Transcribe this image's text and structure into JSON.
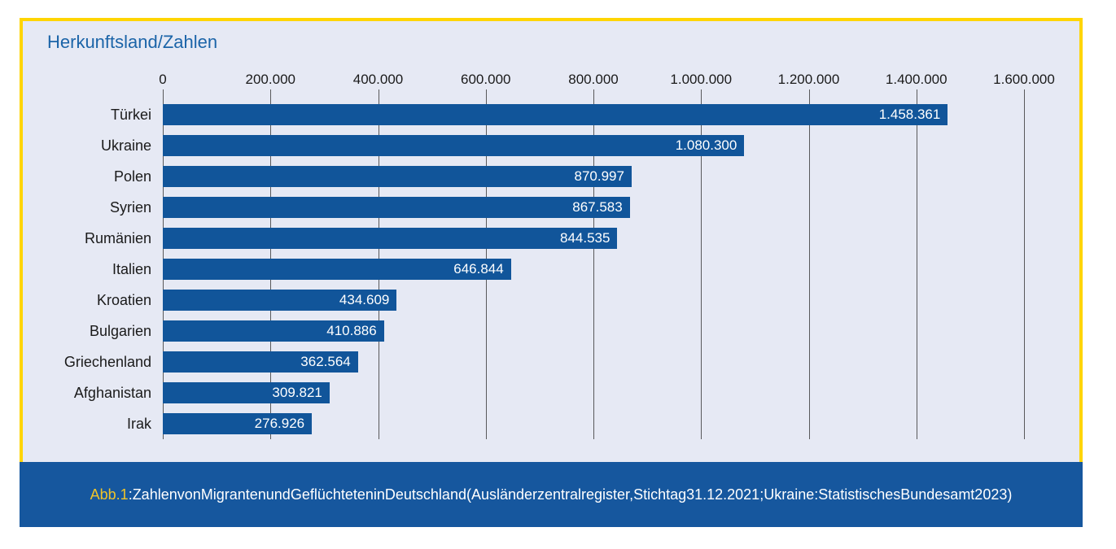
{
  "figure": {
    "title": "Herkunftsland/Zahlen",
    "caption": {
      "prefix": "Abb.1",
      "text": ":ZahlenvonMigrantenundGeflüchteteninDeutschland(Ausländerzentralregister,Stichtag31.12.2021;Ukraine:StatistischesBundesamt2023)"
    }
  },
  "chart_data": {
    "type": "bar",
    "orientation": "horizontal",
    "title": "Herkunftsland/Zahlen",
    "categories": [
      "Türkei",
      "Ukraine",
      "Polen",
      "Syrien",
      "Rumänien",
      "Italien",
      "Kroatien",
      "Bulgarien",
      "Griechenland",
      "Afghanistan",
      "Irak"
    ],
    "values": [
      1458361,
      1080300,
      870997,
      867583,
      844535,
      646844,
      434609,
      410886,
      362564,
      309821,
      276926
    ],
    "value_labels": [
      "1.458.361",
      "1.080.300",
      "870.997",
      "867.583",
      "844.535",
      "646.844",
      "434.609",
      "410.886",
      "362.564",
      "309.821",
      "276.926"
    ],
    "x_tick_labels": [
      "0",
      "200.000",
      "400.000",
      "600.000",
      "800.000",
      "1.000.000",
      "1.200.000",
      "1.400.000",
      "1.600.000"
    ],
    "xlim": [
      0,
      1600000
    ],
    "grid": true,
    "legend": false,
    "value_label_position": "inside-end"
  },
  "colors": {
    "bar": "#11559A",
    "panel_bg": "#E6E9F4",
    "panel_border": "#FFD500",
    "caption_bg": "#16579E",
    "title_text": "#1B64A8",
    "caption_prefix_text": "#F0C428",
    "caption_text": "#FFFFFF",
    "grid_line": "#59595B",
    "axis_text": "#1A1A1A",
    "value_text": "#FFFFFF"
  }
}
